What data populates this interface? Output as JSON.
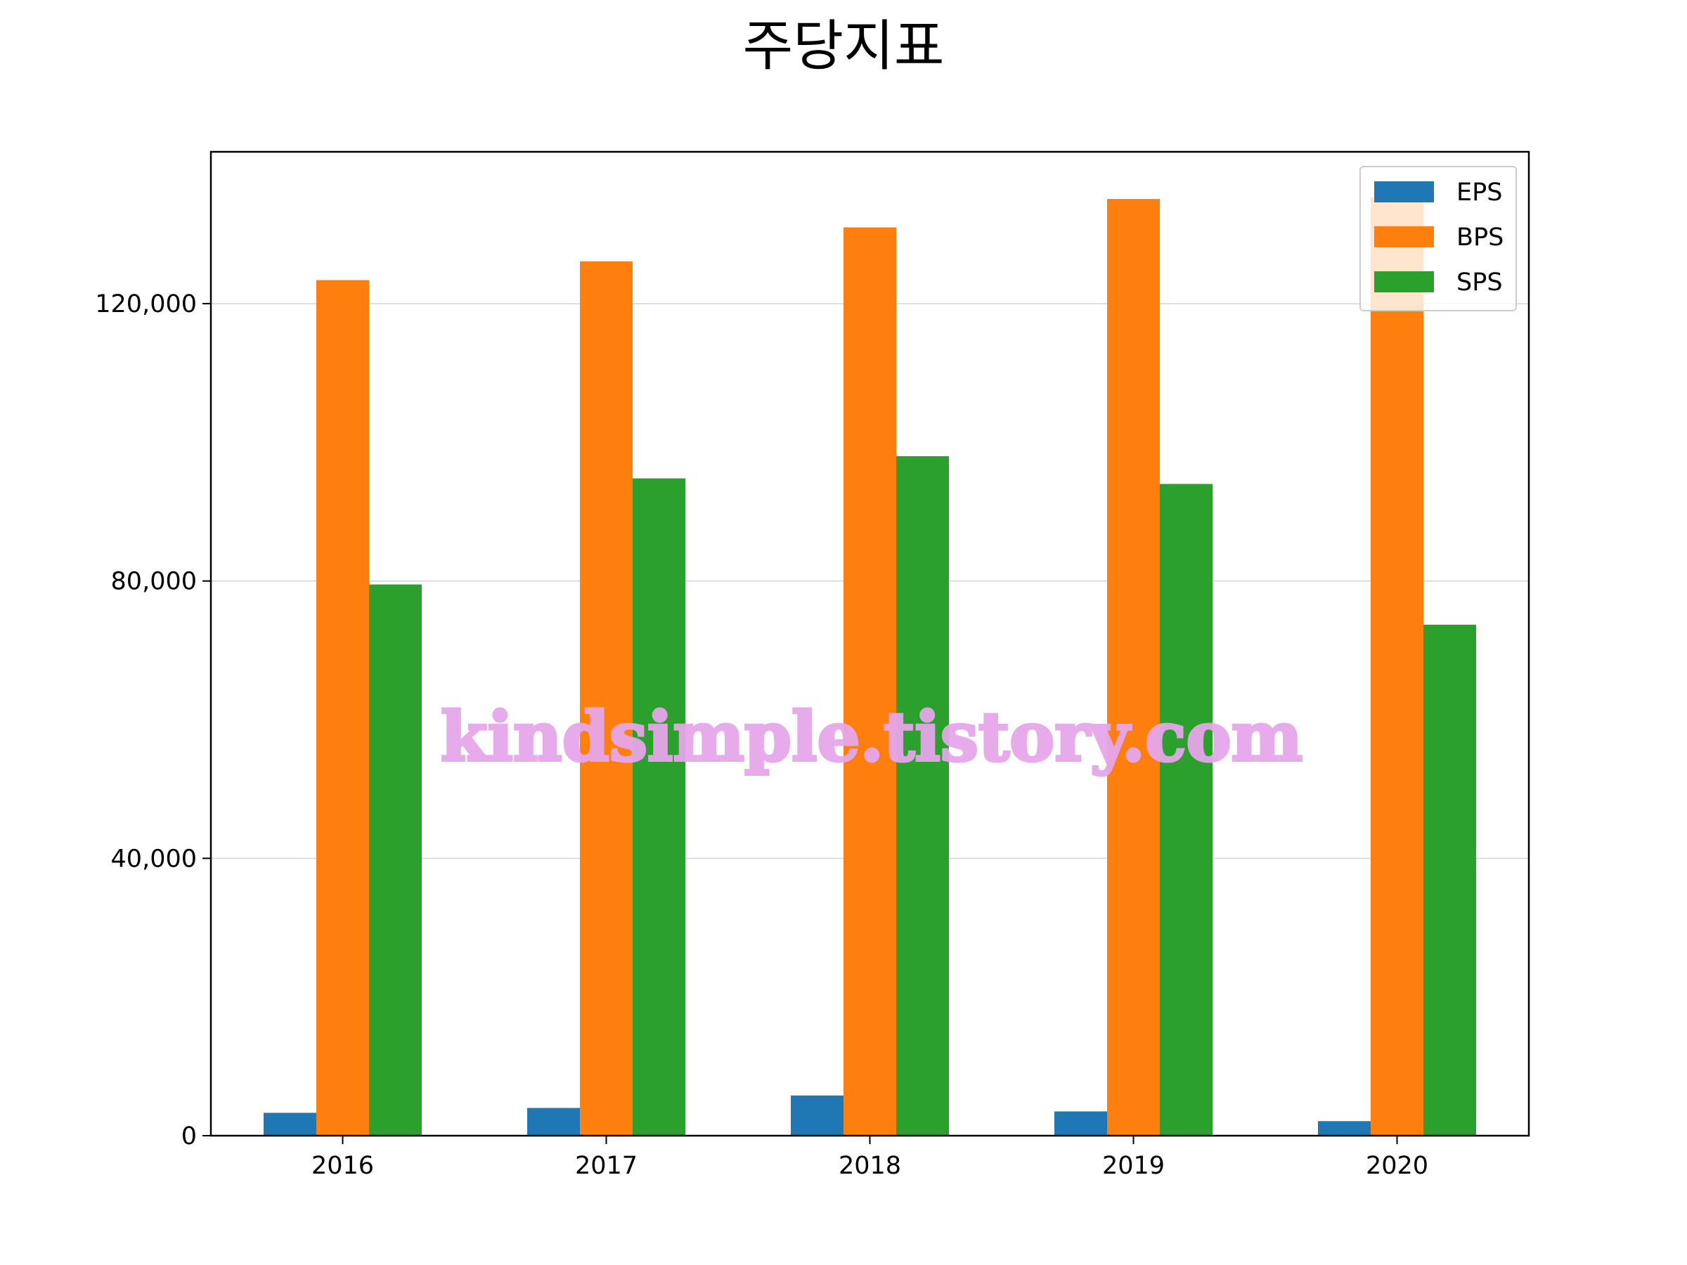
{
  "chart_data": {
    "type": "bar",
    "title": "주당지표",
    "xlabel": "",
    "ylabel": "",
    "categories": [
      "2016",
      "2017",
      "2018",
      "2019",
      "2020"
    ],
    "series": [
      {
        "name": "EPS",
        "color": "#1f77b4",
        "values": [
          3300,
          4000,
          5800,
          3500,
          2100
        ]
      },
      {
        "name": "BPS",
        "color": "#ff7f0e",
        "values": [
          123400,
          126100,
          131000,
          135100,
          135300
        ]
      },
      {
        "name": "SPS",
        "color": "#2ca02c",
        "values": [
          79500,
          94800,
          98000,
          94000,
          73700
        ]
      }
    ],
    "ylim": [
      0,
      141900
    ],
    "yticks": [
      0,
      40000,
      80000,
      120000
    ],
    "ytick_labels": [
      "0",
      "40,000",
      "80,000",
      "120,000"
    ],
    "grid": "horizontal",
    "legend_position": "top-right"
  },
  "watermark": "kindsimple.tistory.com"
}
